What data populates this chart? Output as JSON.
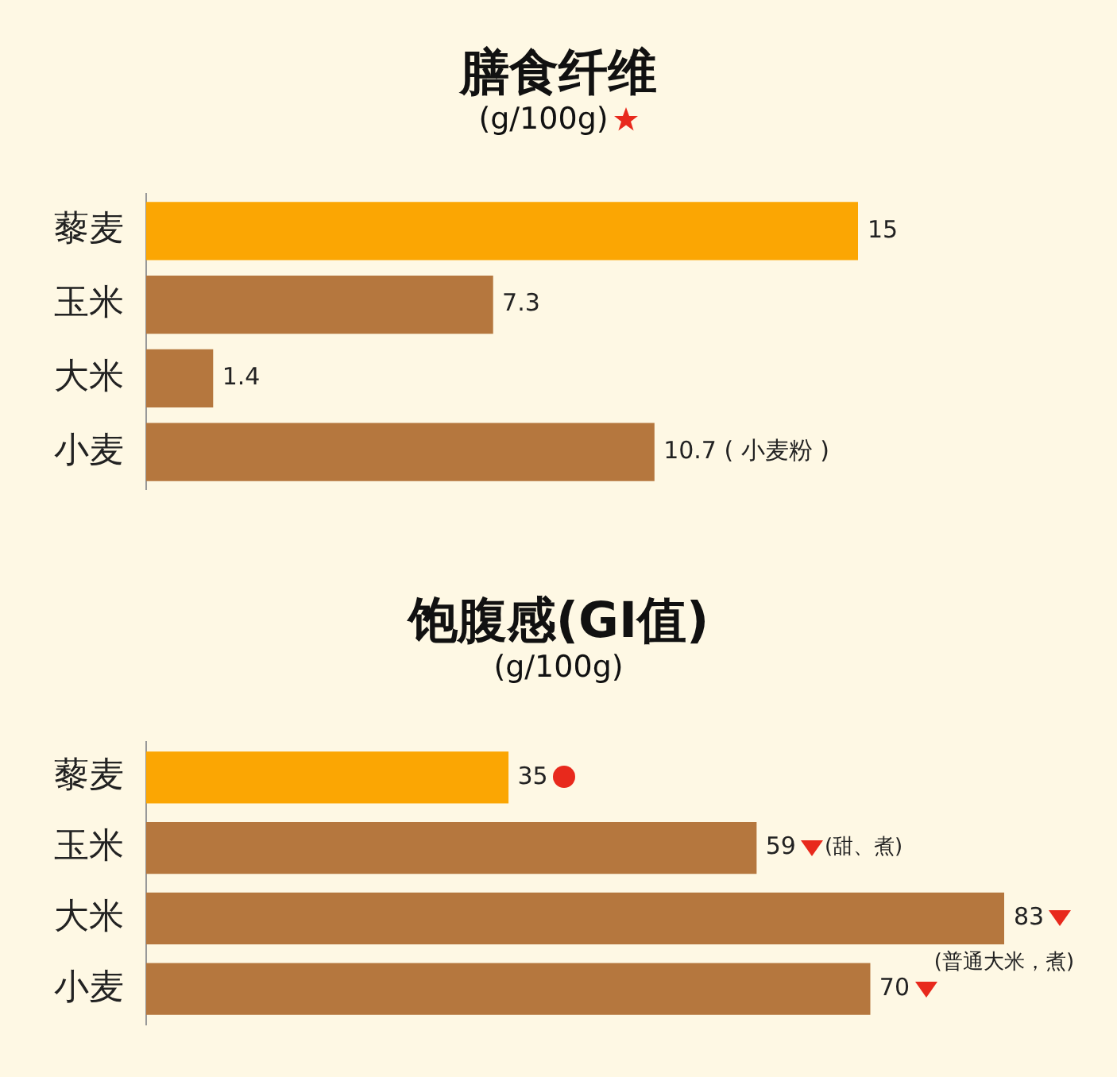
{
  "chart_data": [
    {
      "type": "bar",
      "orientation": "horizontal",
      "title": "膳食纤维",
      "subtitle": "(g/100g)",
      "categories": [
        "藜麦",
        "玉米",
        "大米",
        "小麦"
      ],
      "values": [
        15,
        7.3,
        1.4,
        10.7
      ],
      "colors": [
        "#fba603",
        "#b5773e",
        "#b5773e",
        "#b5773e"
      ],
      "value_labels": [
        "15",
        "7.3",
        "1.4",
        "10.7 ( 小麦粉 )"
      ]
    },
    {
      "type": "bar",
      "orientation": "horizontal",
      "title": "饱腹感(GI值)",
      "subtitle": "(g/100g)",
      "categories": [
        "藜麦",
        "玉米",
        "大米",
        "小麦"
      ],
      "values": [
        35,
        59,
        83,
        70
      ],
      "colors": [
        "#fba603",
        "#b5773e",
        "#b5773e",
        "#b5773e"
      ],
      "data_labels": true,
      "annotations": [
        "(甜、煮)",
        "(普通大米，煮)"
      ]
    }
  ]
}
